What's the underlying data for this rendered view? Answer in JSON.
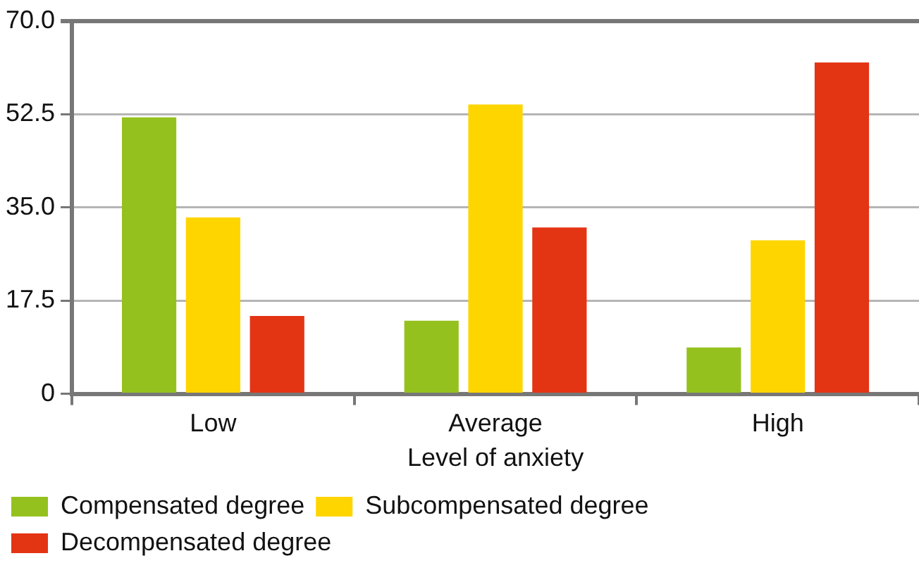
{
  "chart_data": {
    "type": "bar",
    "xlabel": "Level of anxiety",
    "categories": [
      "Low",
      "Average",
      "High"
    ],
    "series": [
      {
        "name": "Compensated degree",
        "color": "#95c11f",
        "values": [
          51.9,
          13.7,
          8.7
        ]
      },
      {
        "name": "Subcompensated degree",
        "color": "#ffd500",
        "values": [
          33.1,
          54.3,
          28.8
        ]
      },
      {
        "name": "Decompensated degree",
        "color": "#e33414",
        "values": [
          14.6,
          31.2,
          62.2
        ]
      }
    ],
    "ylim": [
      0,
      70
    ],
    "yticks": [
      0,
      17.5,
      {
        "value": 35,
        "label": "35.0"
      },
      52.5,
      {
        "value": 70,
        "label": "70.0"
      }
    ],
    "grid": "y",
    "legend": "bottom"
  }
}
